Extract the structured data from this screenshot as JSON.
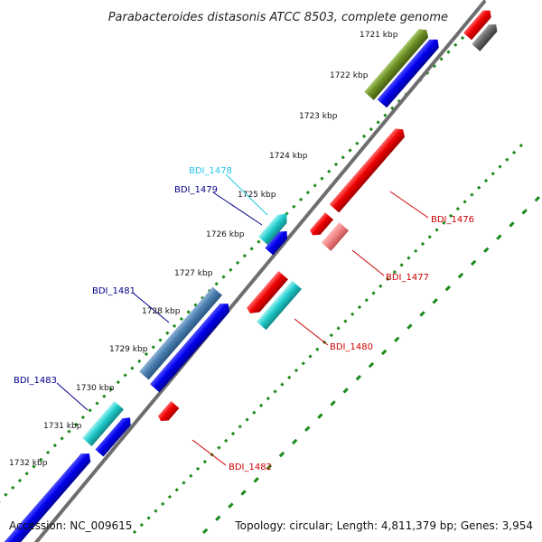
{
  "title": "Parabacteroides distasonis ATCC 8503, complete genome",
  "footer": {
    "accession": "Accession: NC_009615",
    "summary": "Topology: circular; Length: 4,811,379 bp; Genes: 3,954"
  },
  "ticks": [
    "1721 kbp",
    "1722 kbp",
    "1723 kbp",
    "1724 kbp",
    "1725 kbp",
    "1726 kbp",
    "1727 kbp",
    "1728 kbp",
    "1729 kbp",
    "1730 kbp",
    "1731 kbp",
    "1732 kbp"
  ],
  "gene_labels": {
    "bdi1476": "BDI_1476",
    "bdi1477": "BDI_1477",
    "bdi1478": "BDI_1478",
    "bdi1479": "BDI_1479",
    "bdi1480": "BDI_1480",
    "bdi1481": "BDI_1481",
    "bdi1482": "BDI_1482",
    "bdi1483": "BDI_1483"
  },
  "colors": {
    "forward_cds": "#0000dd",
    "reverse_cds": "#ee0000",
    "cyan": "#22cccc",
    "steelblue": "#4a7fb0",
    "olive": "#6b8e23",
    "gray": "#666666",
    "backbone": "#8a8a8a",
    "dots": "#1a8a1a",
    "label_blue": "#00008b",
    "label_cyan": "#22c5e8",
    "label_red": "#cc0000"
  }
}
